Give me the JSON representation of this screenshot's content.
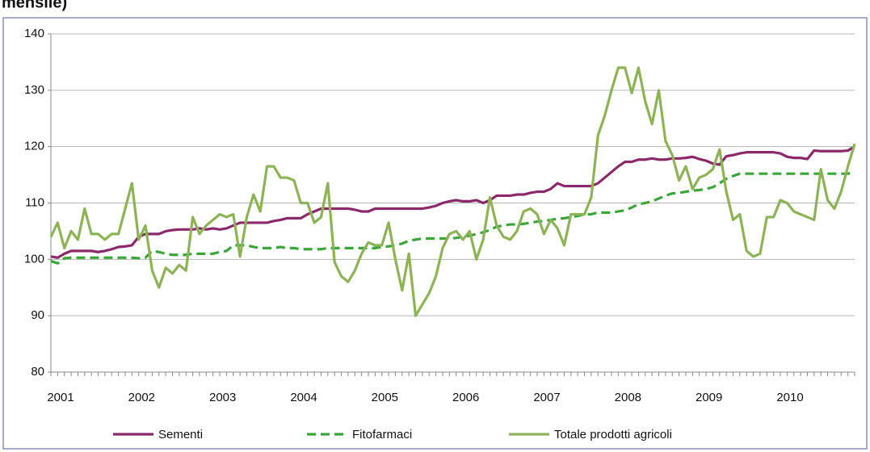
{
  "chart_data": {
    "type": "line",
    "title": "mensile)",
    "categories": [
      "2001",
      null,
      null,
      null,
      null,
      null,
      null,
      null,
      null,
      null,
      null,
      null,
      "2002",
      null,
      null,
      null,
      null,
      null,
      null,
      null,
      null,
      null,
      null,
      null,
      "2003",
      null,
      null,
      null,
      null,
      null,
      null,
      null,
      null,
      null,
      null,
      null,
      "2004",
      null,
      null,
      null,
      null,
      null,
      null,
      null,
      null,
      null,
      null,
      null,
      "2005",
      null,
      null,
      null,
      null,
      null,
      null,
      null,
      null,
      null,
      null,
      null,
      "2006",
      null,
      null,
      null,
      null,
      null,
      null,
      null,
      null,
      null,
      null,
      null,
      "2007",
      null,
      null,
      null,
      null,
      null,
      null,
      null,
      null,
      null,
      null,
      null,
      "2008",
      null,
      null,
      null,
      null,
      null,
      null,
      null,
      null,
      null,
      null,
      null,
      "2009",
      null,
      null,
      null,
      null,
      null,
      null,
      null,
      null,
      null,
      null,
      null,
      "2010",
      null,
      null,
      null,
      null,
      null,
      null,
      null,
      null,
      null,
      null,
      null
    ],
    "series": [
      {
        "name": "Sementi",
        "color": "#8b2a6b",
        "dash": false,
        "values": [
          100.5,
          100.3,
          101,
          101.5,
          101.5,
          101.5,
          101.5,
          101.3,
          101.5,
          101.8,
          102.2,
          102.3,
          102.5,
          104,
          104.5,
          104.5,
          104.5,
          105,
          105.2,
          105.3,
          105.3,
          105.3,
          105.5,
          105.3,
          105.5,
          105.3,
          105.5,
          106,
          106.5,
          106.5,
          106.5,
          106.5,
          106.5,
          106.8,
          107,
          107.3,
          107.3,
          107.3,
          108,
          108.5,
          109,
          109,
          109,
          109,
          109,
          108.8,
          108.5,
          108.5,
          109,
          109,
          109,
          109,
          109,
          109,
          109,
          109,
          109.2,
          109.5,
          110,
          110.3,
          110.5,
          110.3,
          110.3,
          110.5,
          110,
          110.5,
          111.3,
          111.3,
          111.3,
          111.5,
          111.5,
          111.8,
          112,
          112,
          112.5,
          113.5,
          113,
          113,
          113,
          113,
          113,
          113.5,
          114.5,
          115.5,
          116.5,
          117.3,
          117.3,
          117.7,
          117.7,
          117.9,
          117.7,
          117.7,
          117.9,
          117.9,
          118,
          118.2,
          117.8,
          117.5,
          117,
          116.8,
          118.3,
          118.5,
          118.8,
          119,
          119,
          119,
          119,
          119,
          118.8,
          118.2,
          118,
          118,
          117.8,
          119.3,
          119.2,
          119.2,
          119.2,
          119.2,
          119.3,
          120
        ]
      },
      {
        "name": "Fitofarmaci",
        "color": "#3aa63a",
        "dash": true,
        "values": [
          99.7,
          99.3,
          100.2,
          100.3,
          100.3,
          100.3,
          100.3,
          100.3,
          100.3,
          100.3,
          100.3,
          100.3,
          100.3,
          100.2,
          100.3,
          101.5,
          101.3,
          101,
          100.8,
          100.8,
          100.8,
          101,
          101,
          101,
          101,
          101.3,
          101.5,
          102.5,
          102.5,
          102.5,
          102.2,
          102,
          102,
          102,
          102.2,
          102,
          102,
          101.8,
          101.8,
          101.8,
          101.8,
          102,
          102,
          102,
          102,
          102,
          102,
          102,
          102,
          102.2,
          102.3,
          102.5,
          102.8,
          103.3,
          103.5,
          103.7,
          103.7,
          103.7,
          103.7,
          103.7,
          103.8,
          104,
          104.2,
          104.5,
          104.8,
          105.2,
          105.8,
          106,
          106.2,
          106.2,
          106.3,
          106.5,
          106.7,
          106.8,
          107,
          107.2,
          107.3,
          107.5,
          107.7,
          108,
          108,
          108.3,
          108.3,
          108.3,
          108.5,
          108.7,
          109.2,
          109.8,
          110,
          110.3,
          110.8,
          111.3,
          111.7,
          111.8,
          112,
          112.2,
          112.3,
          112.5,
          112.8,
          113.5,
          114.3,
          114.8,
          115.2,
          115.2,
          115.2,
          115.2,
          115.2,
          115.2,
          115.2,
          115.2,
          115.2,
          115.2,
          115.2,
          115.2,
          115.2,
          115.2,
          115.2,
          115.2,
          115.2,
          115.5
        ]
      },
      {
        "name": "Totale prodotti agricoli",
        "color": "#8db356",
        "dash": false,
        "values": [
          104,
          106.5,
          102,
          105,
          103.5,
          109,
          104.5,
          104.5,
          103.5,
          104.5,
          104.5,
          109,
          113.5,
          103.5,
          106,
          98,
          95,
          98.5,
          97.5,
          99,
          98,
          107.5,
          104.5,
          106,
          107,
          108,
          107.5,
          108,
          100.5,
          107.5,
          111.5,
          108.5,
          116.5,
          116.5,
          114.5,
          114.5,
          114,
          110,
          110,
          106.5,
          107.5,
          113.5,
          99.5,
          97,
          96,
          98,
          101,
          103,
          102.5,
          102.5,
          106.5,
          100,
          94.5,
          101,
          90,
          92,
          94,
          97,
          102,
          104.5,
          105,
          103.5,
          105,
          100,
          103.5,
          111,
          106,
          104,
          103.5,
          105,
          108.5,
          109,
          108,
          104.5,
          107,
          105.5,
          102.5,
          108,
          108,
          108,
          111,
          122,
          125.5,
          130,
          134,
          134,
          129.5,
          134,
          128,
          124,
          130,
          121,
          118.5,
          114,
          116.5,
          112.5,
          114.5,
          115,
          116,
          119.5,
          112,
          107,
          108,
          101.5,
          100.5,
          101,
          107.5,
          107.5,
          110.5,
          110,
          108.5,
          108,
          107.5,
          107,
          116,
          110.5,
          109,
          112,
          116.5,
          120.5
        ]
      }
    ],
    "ylim": [
      80,
      140
    ],
    "yticks": [
      80,
      90,
      100,
      110,
      120,
      130,
      140
    ],
    "grid": true
  }
}
